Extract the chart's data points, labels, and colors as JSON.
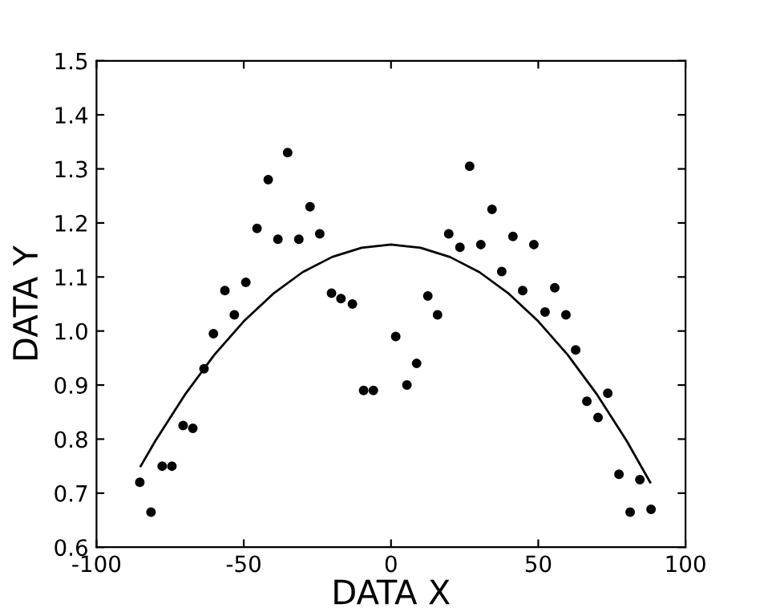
{
  "chart_data": {
    "type": "scatter",
    "xlabel": "DATA X",
    "ylabel": "DATA Y",
    "xlim": [
      -100,
      100
    ],
    "ylim": [
      0.6,
      1.5
    ],
    "xticks": [
      -100,
      -50,
      0,
      50,
      100
    ],
    "yticks": [
      {
        "value": 0.6,
        "label": "0.6"
      },
      {
        "value": 0.7,
        "label": "0.7"
      },
      {
        "value": 0.8,
        "label": "0.8"
      },
      {
        "value": 0.9,
        "label": "0.9"
      },
      {
        "value": 1.0,
        "label": "1.0"
      },
      {
        "value": 1.1,
        "label": "1.1"
      },
      {
        "value": 1.2,
        "label": "1.2"
      },
      {
        "value": 1.3,
        "label": "1.3"
      },
      {
        "value": 1.4,
        "label": "1.4"
      },
      {
        "value": 1.5,
        "label": "1.5"
      }
    ],
    "grid": false,
    "series": [
      {
        "color": "#000000",
        "marker": "circle",
        "x": [
          -85.3,
          -81.5,
          -77.7,
          -74.4,
          -70.6,
          -67.3,
          -63.5,
          -60.3,
          -56.4,
          -53.2,
          -49.3,
          -45.5,
          -41.7,
          -38.4,
          -35.1,
          -31.3,
          -27.5,
          -24.2,
          -20.2,
          -17,
          -13.1,
          -9.3,
          -6,
          1.6,
          5.4,
          8.7,
          12.5,
          15.8,
          19.6,
          23.4,
          26.7,
          30.5,
          34.3,
          37.6,
          41.4,
          44.7,
          48.5,
          52.3,
          55.6,
          59.4,
          62.7,
          66.5,
          70.3,
          73.6,
          77.4,
          81.2,
          84.5,
          88.3
        ],
        "values": [
          0.72,
          0.665,
          0.75,
          0.75,
          0.825,
          0.82,
          0.93,
          0.995,
          1.075,
          1.03,
          1.09,
          1.19,
          1.28,
          1.17,
          1.33,
          1.17,
          1.23,
          1.18,
          1.07,
          1.06,
          1.05,
          0.89,
          0.89,
          0.99,
          0.9,
          0.94,
          1.065,
          1.03,
          1.18,
          1.155,
          1.305,
          1.16,
          1.225,
          1.11,
          1.175,
          1.075,
          1.16,
          1.035,
          1.08,
          1.03,
          0.965,
          0.87,
          0.84,
          0.885,
          0.735,
          0.665,
          0.725,
          0.67
        ]
      },
      {
        "type": "line",
        "color": "#000000",
        "line_style": "solid",
        "x": [
          -85,
          -80,
          -70,
          -60,
          -50,
          -40,
          -30,
          -20,
          -10,
          0,
          10,
          20,
          30,
          40,
          50,
          60,
          70,
          80,
          88
        ],
        "values": [
          0.75,
          0.797,
          0.882,
          0.956,
          1.018,
          1.069,
          1.109,
          1.137,
          1.154,
          1.16,
          1.154,
          1.137,
          1.109,
          1.069,
          1.018,
          0.956,
          0.882,
          0.797,
          0.72
        ]
      }
    ]
  }
}
